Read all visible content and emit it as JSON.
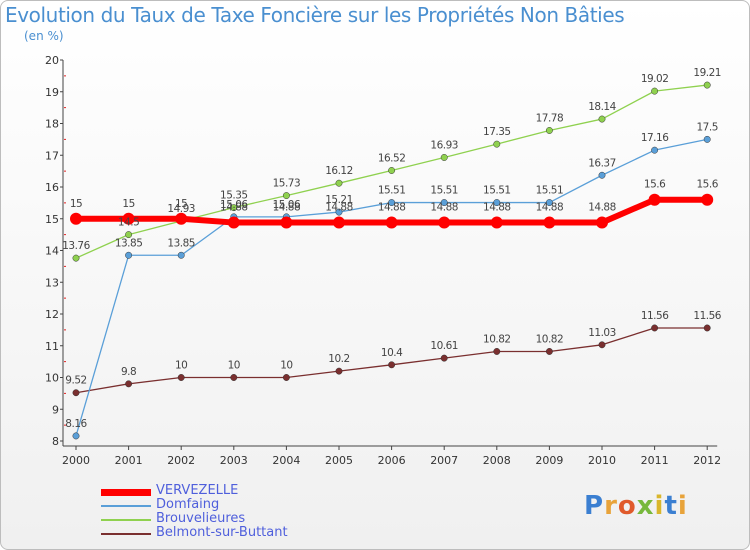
{
  "header": {
    "title": "Evolution du Taux de Taxe Foncière sur les Propriétés Non Bâties",
    "subtitle": "(en %)"
  },
  "logo": {
    "text": "Proxiti",
    "colors": [
      "#3b7fd1",
      "#e8a33a",
      "#e05a2b",
      "#77b83c",
      "#d9b62c"
    ]
  },
  "chart_data": {
    "type": "line",
    "x": [
      "2000",
      "2001",
      "2002",
      "2003",
      "2004",
      "2005",
      "2006",
      "2007",
      "2008",
      "2009",
      "2010",
      "2011",
      "2012"
    ],
    "ylim": [
      8,
      20
    ],
    "yticks": [
      "8",
      "9",
      "10",
      "11",
      "12",
      "13",
      "14",
      "15",
      "16",
      "17",
      "18",
      "19",
      "20"
    ],
    "grid": false,
    "legend": "bottom-left",
    "series": [
      {
        "name": "VERVEZELLE",
        "color": "#ff0000",
        "width": 6,
        "values": [
          15,
          15,
          15,
          14.88,
          14.88,
          14.88,
          14.88,
          14.88,
          14.88,
          14.88,
          14.88,
          15.6,
          15.6
        ],
        "labels": [
          "15",
          "15",
          "15",
          "14.88",
          "14.88",
          "14.88",
          "14.88",
          "14.88",
          "14.88",
          "14.88",
          "14.88",
          "15.6",
          "15.6"
        ]
      },
      {
        "name": "Domfaing",
        "color": "#5a9fd8",
        "width": 1.3,
        "values": [
          8.16,
          13.85,
          13.85,
          15.06,
          15.06,
          15.21,
          15.51,
          15.51,
          15.51,
          15.51,
          16.37,
          17.16,
          17.5
        ],
        "labels": [
          "8.16",
          "13.85",
          "13.85",
          "15.06",
          "15.06",
          "15.21",
          "15.51",
          "15.51",
          "15.51",
          "15.51",
          "16.37",
          "17.16",
          "17.5"
        ]
      },
      {
        "name": "Brouvelieures",
        "color": "#8fd14f",
        "width": 1.3,
        "values": [
          13.76,
          14.5,
          14.93,
          15.35,
          15.73,
          16.12,
          16.52,
          16.93,
          17.35,
          17.78,
          18.14,
          19.02,
          19.21
        ],
        "labels": [
          "13.76",
          "14.5",
          "14.93",
          "15.35",
          "15.73",
          "16.12",
          "16.52",
          "16.93",
          "17.35",
          "17.78",
          "18.14",
          "19.02",
          "19.21"
        ]
      },
      {
        "name": "Belmont-sur-Buttant",
        "color": "#7a2f2f",
        "width": 1.3,
        "values": [
          9.52,
          9.8,
          10,
          10,
          10,
          10.2,
          10.4,
          10.61,
          10.82,
          10.82,
          11.03,
          11.56,
          11.56
        ],
        "labels": [
          "9.52",
          "9.8",
          "10",
          "10",
          "10",
          "10.2",
          "10.4",
          "10.61",
          "10.82",
          "10.82",
          "11.03",
          "11.56",
          "11.56"
        ]
      }
    ]
  }
}
